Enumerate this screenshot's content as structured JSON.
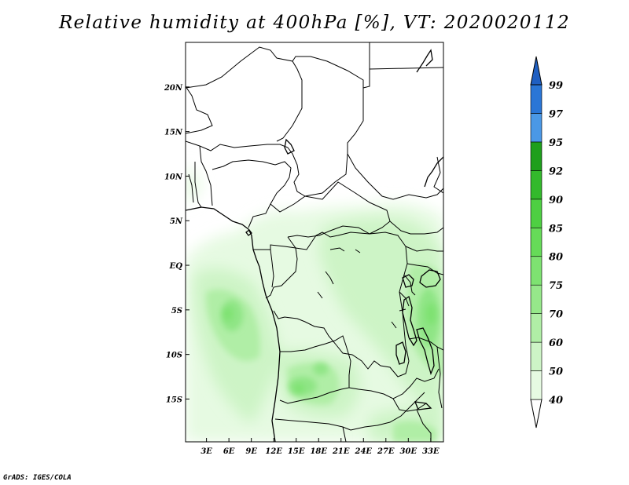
{
  "title": "Relative humidity at 400hPa [%], VT: 2020020112",
  "credit": "GrADS: IGES/COLA",
  "chart_data": {
    "type": "heatmap",
    "title": "Relative humidity at 400hPa [%], VT: 2020020112",
    "variable": "Relative humidity",
    "units": "%",
    "level": "400hPa",
    "valid_time": "2020020112",
    "x_ticks": [
      "3E",
      "6E",
      "9E",
      "12E",
      "15E",
      "18E",
      "21E",
      "24E",
      "27E",
      "30E",
      "33E"
    ],
    "x_tick_values": [
      3,
      6,
      9,
      12,
      15,
      18,
      21,
      24,
      27,
      30,
      33
    ],
    "y_ticks": [
      "20N",
      "15N",
      "10N",
      "5N",
      "EQ",
      "5S",
      "10S",
      "15S"
    ],
    "y_tick_values": [
      20,
      15,
      10,
      5,
      0,
      -5,
      -10,
      -15
    ],
    "xlim": [
      0.2,
      34.7
    ],
    "ylim": [
      -19.8,
      25
    ],
    "colorbar": {
      "levels": [
        40,
        50,
        60,
        70,
        75,
        80,
        85,
        90,
        92,
        95,
        97,
        99
      ],
      "labels": [
        "40",
        "50",
        "60",
        "70",
        "75",
        "80",
        "85",
        "90",
        "92",
        "95",
        "97",
        "99"
      ],
      "colors": [
        "#ffffff",
        "#e6fae2",
        "#cdf4c6",
        "#b0eea6",
        "#96e88a",
        "#7ee271",
        "#66db58",
        "#4ecf42",
        "#33b92c",
        "#1e9f1c",
        "#4a98e6",
        "#2a76d6",
        "#1f5fc2"
      ]
    },
    "humid_regions": [
      {
        "lon": 5.5,
        "lat": -5.5,
        "value": 75
      },
      {
        "lon": 7.5,
        "lat": -8.0,
        "value": 70
      },
      {
        "lon": 3.0,
        "lat": -11.0,
        "value": 60
      },
      {
        "lon": 15.5,
        "lat": -15.0,
        "value": 80
      },
      {
        "lon": 18.0,
        "lat": -13.0,
        "value": 70
      },
      {
        "lon": 24.0,
        "lat": -6.0,
        "value": 60
      },
      {
        "lon": 27.0,
        "lat": 2.0,
        "value": 60
      },
      {
        "lon": 31.5,
        "lat": -6.5,
        "value": 80
      },
      {
        "lon": 32.5,
        "lat": -9.5,
        "value": 75
      },
      {
        "lon": 29.0,
        "lat": -17.5,
        "value": 70
      },
      {
        "lon": 12.0,
        "lat": 4.0,
        "value": 50
      },
      {
        "lon": 21.0,
        "lat": 3.0,
        "value": 50
      },
      {
        "lon": 0.8,
        "lat": 9.0,
        "value": 50
      }
    ]
  }
}
